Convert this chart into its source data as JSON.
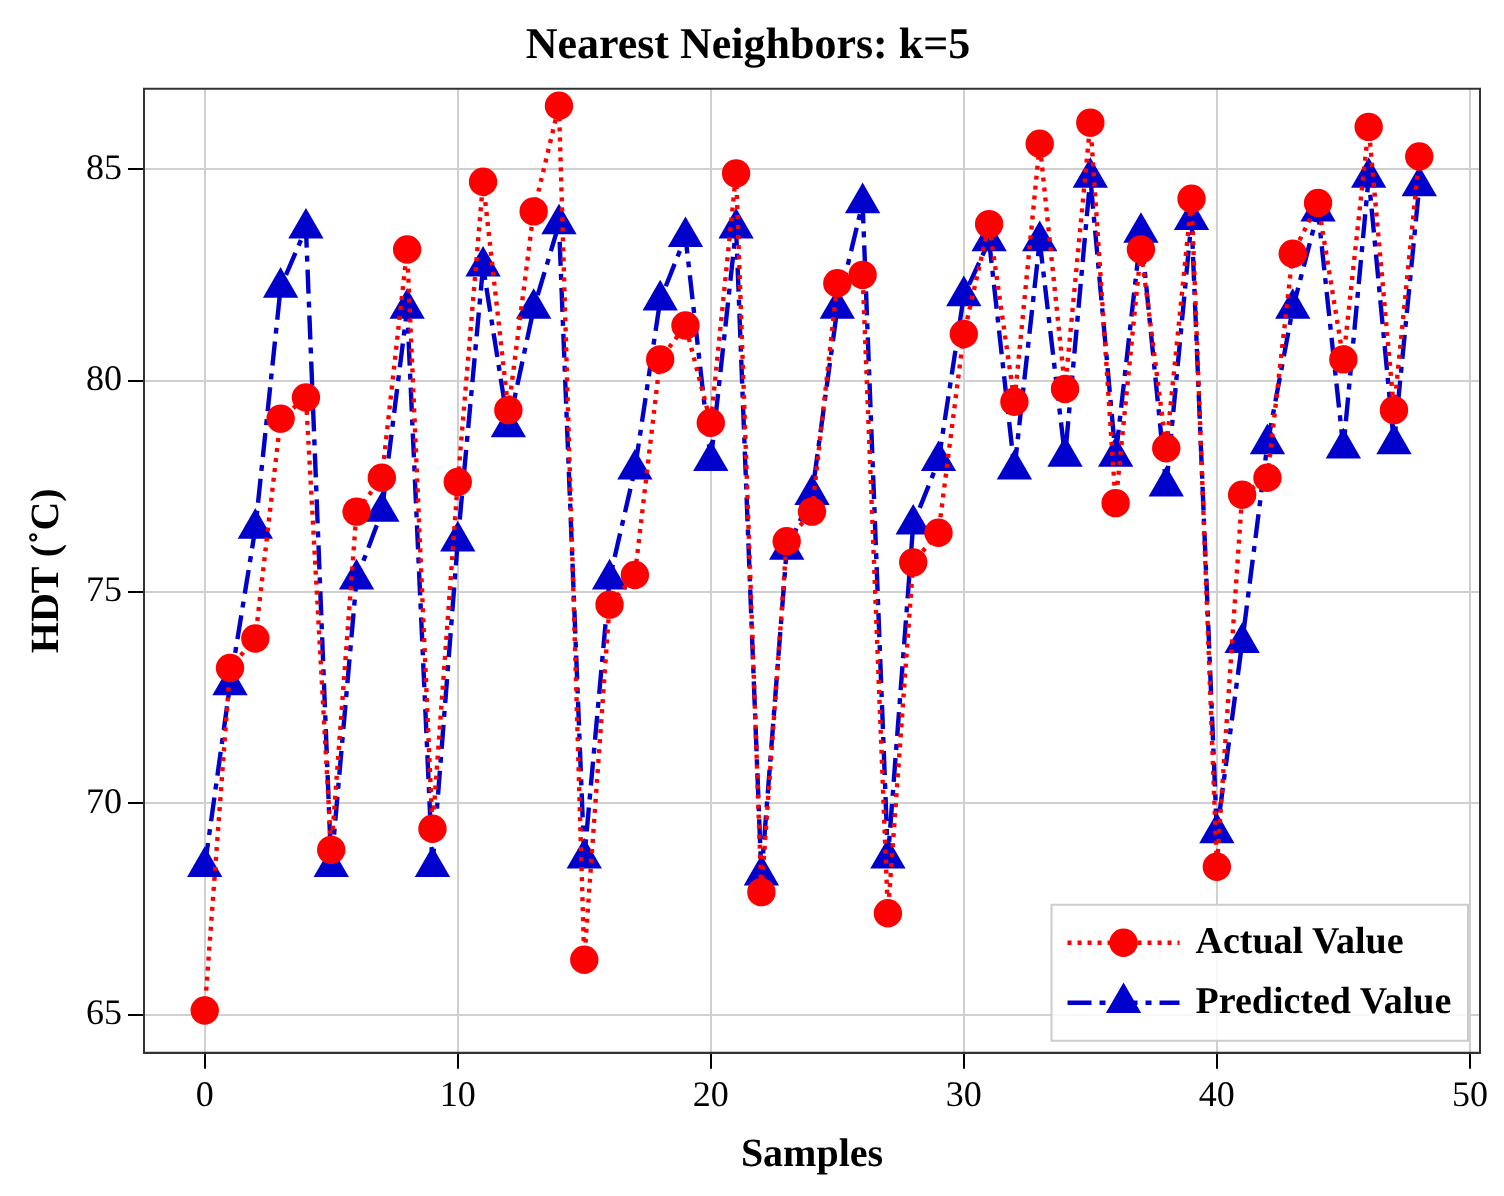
{
  "chart_data": {
    "type": "line",
    "title": "Nearest Neighbors: k=5",
    "xlabel": "Samples",
    "ylabel": "HDT (˚C)",
    "x": [
      0,
      1,
      2,
      3,
      4,
      5,
      6,
      7,
      8,
      9,
      10,
      11,
      12,
      13,
      14,
      15,
      16,
      17,
      18,
      19,
      20,
      21,
      22,
      23,
      24,
      25,
      26,
      27,
      28,
      29,
      30,
      31,
      32,
      33,
      34,
      35,
      36,
      37,
      38,
      39,
      40,
      41,
      42,
      43,
      44,
      45,
      46,
      47,
      48
    ],
    "series": [
      {
        "name": "Actual Value",
        "color": "#ff0000",
        "marker": "circle",
        "line_style": "dotted",
        "values": [
          65.1,
          73.2,
          73.9,
          79.1,
          79.6,
          68.9,
          76.9,
          77.7,
          83.1,
          69.4,
          77.6,
          84.7,
          79.3,
          84.0,
          86.5,
          66.3,
          74.7,
          75.4,
          80.5,
          81.3,
          79.0,
          84.9,
          67.9,
          76.2,
          76.9,
          82.3,
          82.5,
          67.4,
          75.7,
          76.4,
          81.1,
          83.7,
          79.5,
          85.6,
          79.8,
          86.1,
          77.1,
          83.1,
          78.4,
          84.3,
          68.5,
          77.3,
          77.7,
          83.0,
          84.2,
          80.5,
          86.0,
          79.3,
          85.3
        ]
      },
      {
        "name": "Predicted Value",
        "color": "#0000cc",
        "marker": "triangle",
        "line_style": "dashed",
        "values": [
          68.5,
          72.8,
          76.5,
          82.2,
          83.6,
          68.5,
          75.3,
          76.9,
          81.7,
          68.5,
          76.2,
          82.7,
          78.9,
          81.7,
          83.7,
          68.7,
          75.3,
          77.9,
          81.9,
          83.4,
          78.1,
          83.6,
          68.3,
          76.0,
          77.3,
          81.7,
          84.2,
          68.7,
          76.6,
          78.1,
          82.0,
          83.3,
          77.9,
          83.3,
          78.2,
          84.8,
          78.2,
          83.5,
          77.5,
          83.8,
          69.3,
          73.8,
          78.5,
          81.7,
          84.0,
          78.4,
          84.8,
          78.5,
          84.6
        ]
      }
    ],
    "xlim": [
      -2.4,
      50.4
    ],
    "ylim": [
      64.1,
      86.9
    ],
    "xticks": [
      0,
      10,
      20,
      30,
      40,
      50
    ],
    "yticks": [
      65,
      70,
      75,
      80,
      85
    ],
    "grid": true,
    "legend": "bottom right"
  }
}
